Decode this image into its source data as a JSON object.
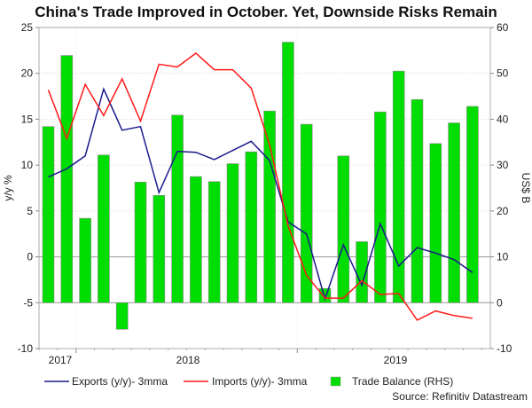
{
  "chart_data": {
    "type": "bar+line",
    "title": "China's Trade Improved in October. Yet, Downside Risks Remain",
    "ylabel_left": "y/y %",
    "ylabel_right": "US$ B",
    "source": "Source: Refinitiv Datastream",
    "ylim_left": [
      -10,
      25
    ],
    "ylim_right": [
      -10,
      60
    ],
    "yticks_left": [
      -10,
      -5,
      0,
      5,
      10,
      15,
      20,
      25
    ],
    "yticks_right": [
      -10,
      0,
      10,
      20,
      30,
      40,
      50,
      60
    ],
    "year_labels": [
      "2017",
      "2018",
      "2019"
    ],
    "grid": true,
    "legend_position": "bottom",
    "x": [
      "2017-11",
      "2017-12",
      "2018-01",
      "2018-02",
      "2018-03",
      "2018-04",
      "2018-05",
      "2018-06",
      "2018-07",
      "2018-08",
      "2018-09",
      "2018-10",
      "2018-11",
      "2018-12",
      "2019-01",
      "2019-02",
      "2019-03",
      "2019-04",
      "2019-05",
      "2019-06",
      "2019-07",
      "2019-08",
      "2019-09",
      "2019-10"
    ],
    "series": [
      {
        "name": "Exports (y/y)- 3mma",
        "type": "line",
        "axis": "left",
        "color": "#1a1a8c",
        "values": [
          8.7,
          9.6,
          11.0,
          18.3,
          13.8,
          14.2,
          7.0,
          11.5,
          11.4,
          10.6,
          11.6,
          12.6,
          10.5,
          3.8,
          2.5,
          -4.6,
          1.3,
          -3.1,
          3.6,
          -1.0,
          1.0,
          0.4,
          -0.3,
          -1.7
        ]
      },
      {
        "name": "Imports (y/y)- 3mma",
        "type": "line",
        "axis": "left",
        "color": "#ff1a1a",
        "values": [
          18.2,
          12.9,
          18.8,
          15.4,
          19.4,
          14.8,
          21.0,
          20.7,
          22.2,
          20.4,
          20.4,
          18.4,
          12.2,
          3.4,
          -2.0,
          -4.5,
          -4.5,
          -2.6,
          -4.1,
          -4.0,
          -6.9,
          -5.9,
          -6.4,
          -6.7
        ]
      },
      {
        "name": "Trade Balance (RHS)",
        "type": "bar",
        "axis": "right",
        "color": "#00dd00",
        "values": [
          38.4,
          53.9,
          18.4,
          32.2,
          -5.8,
          26.3,
          23.4,
          40.9,
          27.5,
          26.4,
          30.3,
          32.9,
          41.8,
          56.8,
          38.9,
          3.1,
          32.0,
          13.3,
          41.6,
          50.5,
          44.3,
          34.7,
          39.2,
          42.8
        ]
      }
    ]
  }
}
